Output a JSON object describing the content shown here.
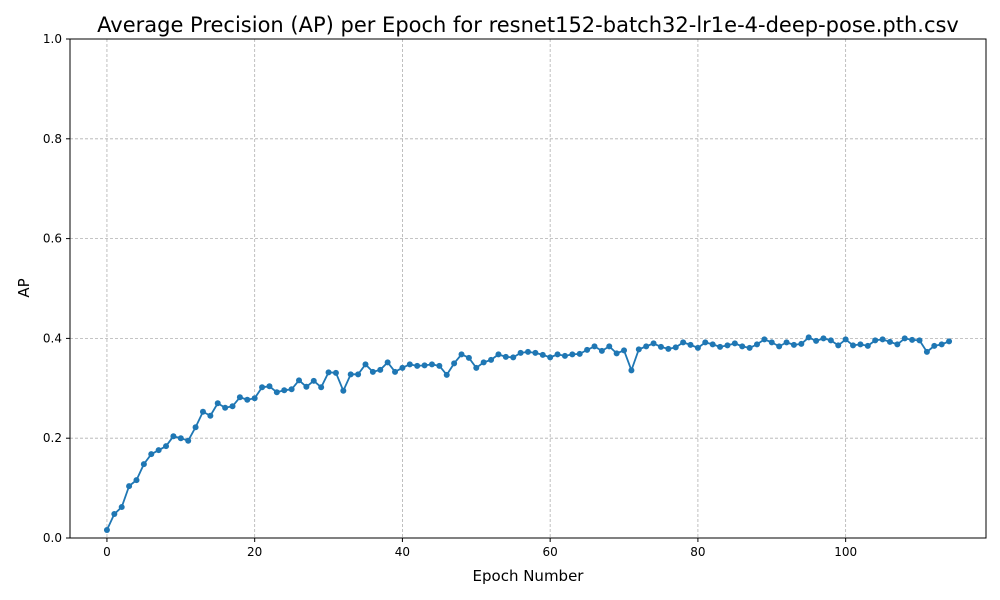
{
  "chart_data": {
    "type": "line",
    "title": "Average Precision (AP) per Epoch for resnet152-batch32-lr1e-4-deep-pose.pth.csv",
    "xlabel": "Epoch Number",
    "ylabel": "AP",
    "xlim": [
      -5,
      119
    ],
    "ylim": [
      0,
      1
    ],
    "xticks": [
      0,
      20,
      40,
      60,
      80,
      100
    ],
    "yticks": [
      0.0,
      0.2,
      0.4,
      0.6,
      0.8,
      1.0
    ],
    "xtick_labels": [
      "0",
      "20",
      "40",
      "60",
      "80",
      "100"
    ],
    "ytick_labels": [
      "0.0",
      "0.2",
      "0.4",
      "0.6",
      "0.8",
      "1.0"
    ],
    "grid": true,
    "marker": "circle",
    "color": "#1f77b4",
    "series": [
      {
        "x": [
          0,
          1,
          2,
          3,
          4,
          5,
          6,
          7,
          8,
          9,
          10,
          11,
          12,
          13,
          14,
          15,
          16,
          17,
          18,
          19,
          20,
          21,
          22,
          23,
          24,
          25,
          26,
          27,
          28,
          29,
          30,
          31,
          32,
          33,
          34,
          35,
          36,
          37,
          38,
          39,
          40,
          41,
          42,
          43,
          44,
          45,
          46,
          47,
          48,
          49,
          50,
          51,
          52,
          53,
          54,
          55,
          56,
          57,
          58,
          59,
          60,
          61,
          62,
          63,
          64,
          65,
          66,
          67,
          68,
          69,
          70,
          71,
          72,
          73,
          74,
          75,
          76,
          77,
          78,
          79,
          80,
          81,
          82,
          83,
          84,
          85,
          86,
          87,
          88,
          89,
          90,
          91,
          92,
          93,
          94,
          95,
          96,
          97,
          98,
          99,
          100,
          101,
          102,
          103,
          104,
          105,
          106,
          107,
          108,
          109,
          110,
          111,
          112,
          113,
          114
        ],
        "y": [
          0.016,
          0.048,
          0.062,
          0.104,
          0.116,
          0.148,
          0.168,
          0.176,
          0.184,
          0.204,
          0.2,
          0.195,
          0.222,
          0.253,
          0.245,
          0.27,
          0.261,
          0.264,
          0.282,
          0.277,
          0.28,
          0.302,
          0.304,
          0.292,
          0.296,
          0.298,
          0.316,
          0.303,
          0.315,
          0.302,
          0.332,
          0.331,
          0.295,
          0.328,
          0.328,
          0.348,
          0.333,
          0.337,
          0.352,
          0.333,
          0.341,
          0.348,
          0.345,
          0.346,
          0.348,
          0.345,
          0.327,
          0.35,
          0.368,
          0.361,
          0.341,
          0.352,
          0.357,
          0.368,
          0.363,
          0.362,
          0.371,
          0.373,
          0.371,
          0.367,
          0.362,
          0.368,
          0.365,
          0.368,
          0.369,
          0.377,
          0.384,
          0.375,
          0.384,
          0.37,
          0.376,
          0.336,
          0.378,
          0.384,
          0.39,
          0.383,
          0.379,
          0.382,
          0.392,
          0.387,
          0.381,
          0.392,
          0.388,
          0.383,
          0.386,
          0.39,
          0.384,
          0.381,
          0.388,
          0.398,
          0.392,
          0.384,
          0.392,
          0.387,
          0.389,
          0.402,
          0.395,
          0.4,
          0.396,
          0.386,
          0.398,
          0.386,
          0.388,
          0.385,
          0.396,
          0.398,
          0.393,
          0.388,
          0.4,
          0.397,
          0.396,
          0.373,
          0.385,
          0.388,
          0.394
        ]
      }
    ]
  }
}
